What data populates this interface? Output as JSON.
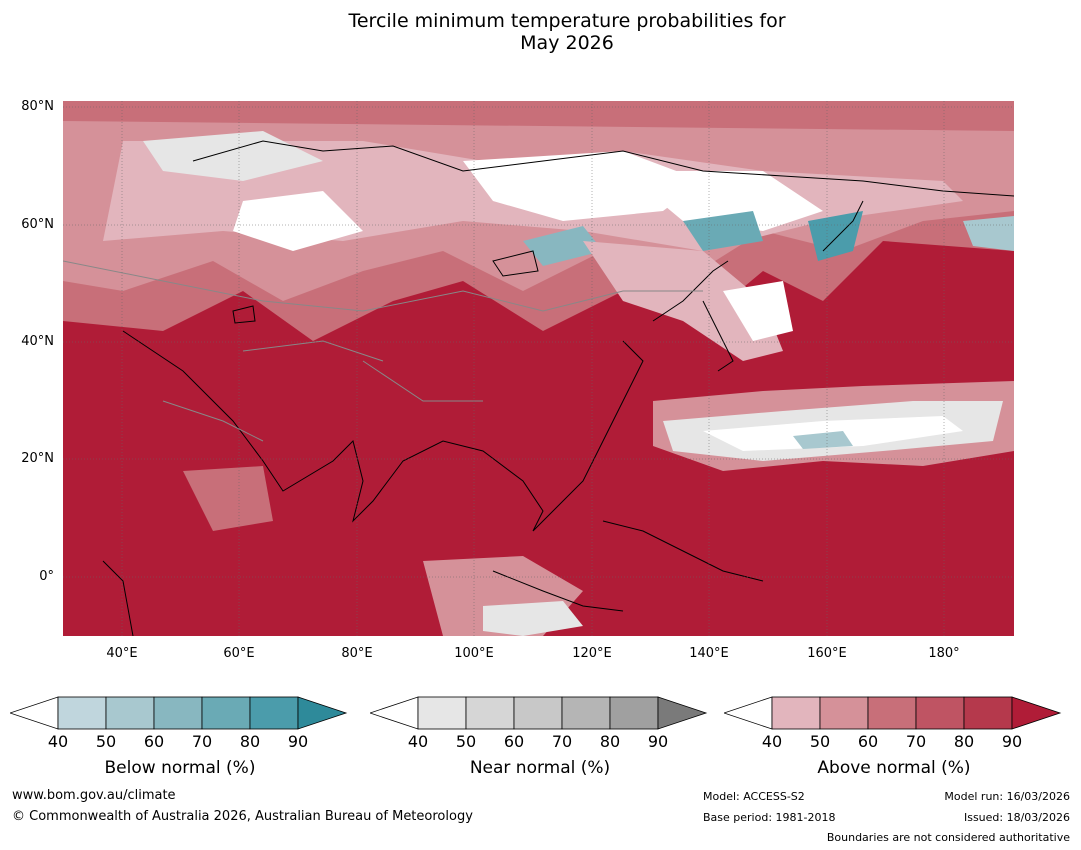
{
  "title_line1": "Tercile minimum temperature probabilities for",
  "title_line2": "May 2026",
  "lat_labels": [
    "80°N",
    "60°N",
    "40°N",
    "20°N",
    "0°"
  ],
  "lon_labels": [
    "40°E",
    "60°E",
    "80°E",
    "100°E",
    "120°E",
    "140°E",
    "160°E",
    "180°"
  ],
  "colorbars": [
    {
      "label": "Below normal (%)",
      "ticks": [
        "40",
        "50",
        "60",
        "70",
        "80",
        "90"
      ],
      "colors": [
        "#ffffff",
        "#c0d6dd",
        "#a8c8cf",
        "#88b7c0",
        "#6aaab5",
        "#4b9cab",
        "#2e8a9a"
      ]
    },
    {
      "label": "Near normal (%)",
      "ticks": [
        "40",
        "50",
        "60",
        "70",
        "80",
        "90"
      ],
      "colors": [
        "#ffffff",
        "#e6e6e6",
        "#d6d6d6",
        "#c8c8c8",
        "#b5b5b5",
        "#a0a0a0",
        "#7a7a7a"
      ]
    },
    {
      "label": "Above normal (%)",
      "ticks": [
        "40",
        "50",
        "60",
        "70",
        "80",
        "90"
      ],
      "colors": [
        "#ffffff",
        "#e2b5bd",
        "#d59199",
        "#c86f79",
        "#bf5463",
        "#b5394c",
        "#b01c37"
      ]
    }
  ],
  "footer": {
    "website": "www.bom.gov.au/climate",
    "copyright": "© Commonwealth of Australia 2026, Australian Bureau of Meteorology",
    "model": "Model: ACCESS-S2",
    "base_period": "Base period: 1981-2018",
    "model_run": "Model run: 16/03/2026",
    "issued": "Issued: 18/03/2026",
    "disclaimer": "Boundaries are not considered authoritative"
  }
}
